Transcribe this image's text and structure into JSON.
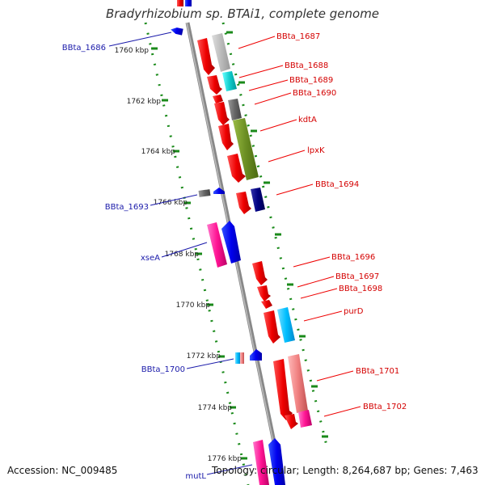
{
  "title": "Bradyrhizobium sp. BTAi1, complete genome",
  "accession": "Accession: NC_009485",
  "summary": "Topology: circular; Length: 8,264,687 bp; Genes: 7,463",
  "colors": {
    "red": "#ee1111",
    "blue": "#1111ee",
    "label_red": "#d40000",
    "label_blue": "#1a1aaa",
    "green": "#1a8a1a",
    "axis": "#888888"
  },
  "kbp_ticks": [
    "1760 kbp",
    "1762 kbp",
    "1764 kbp",
    "1766 kbp",
    "1768 kbp",
    "1770 kbp",
    "1772 kbp",
    "1774 kbp",
    "1776 kbp"
  ],
  "forward_genes": [
    "BBta_1687",
    "BBta_1688",
    "BBta_1689",
    "BBta_1690",
    "kdtA",
    "lpxK",
    "BBta_1694",
    "BBta_1696",
    "BBta_1697",
    "BBta_1698",
    "purD",
    "BBta_1701",
    "BBta_1702"
  ],
  "reverse_genes": [
    "BBta_1686",
    "BBta_1693",
    "xseA",
    "BBta_1700",
    "mutL"
  ]
}
